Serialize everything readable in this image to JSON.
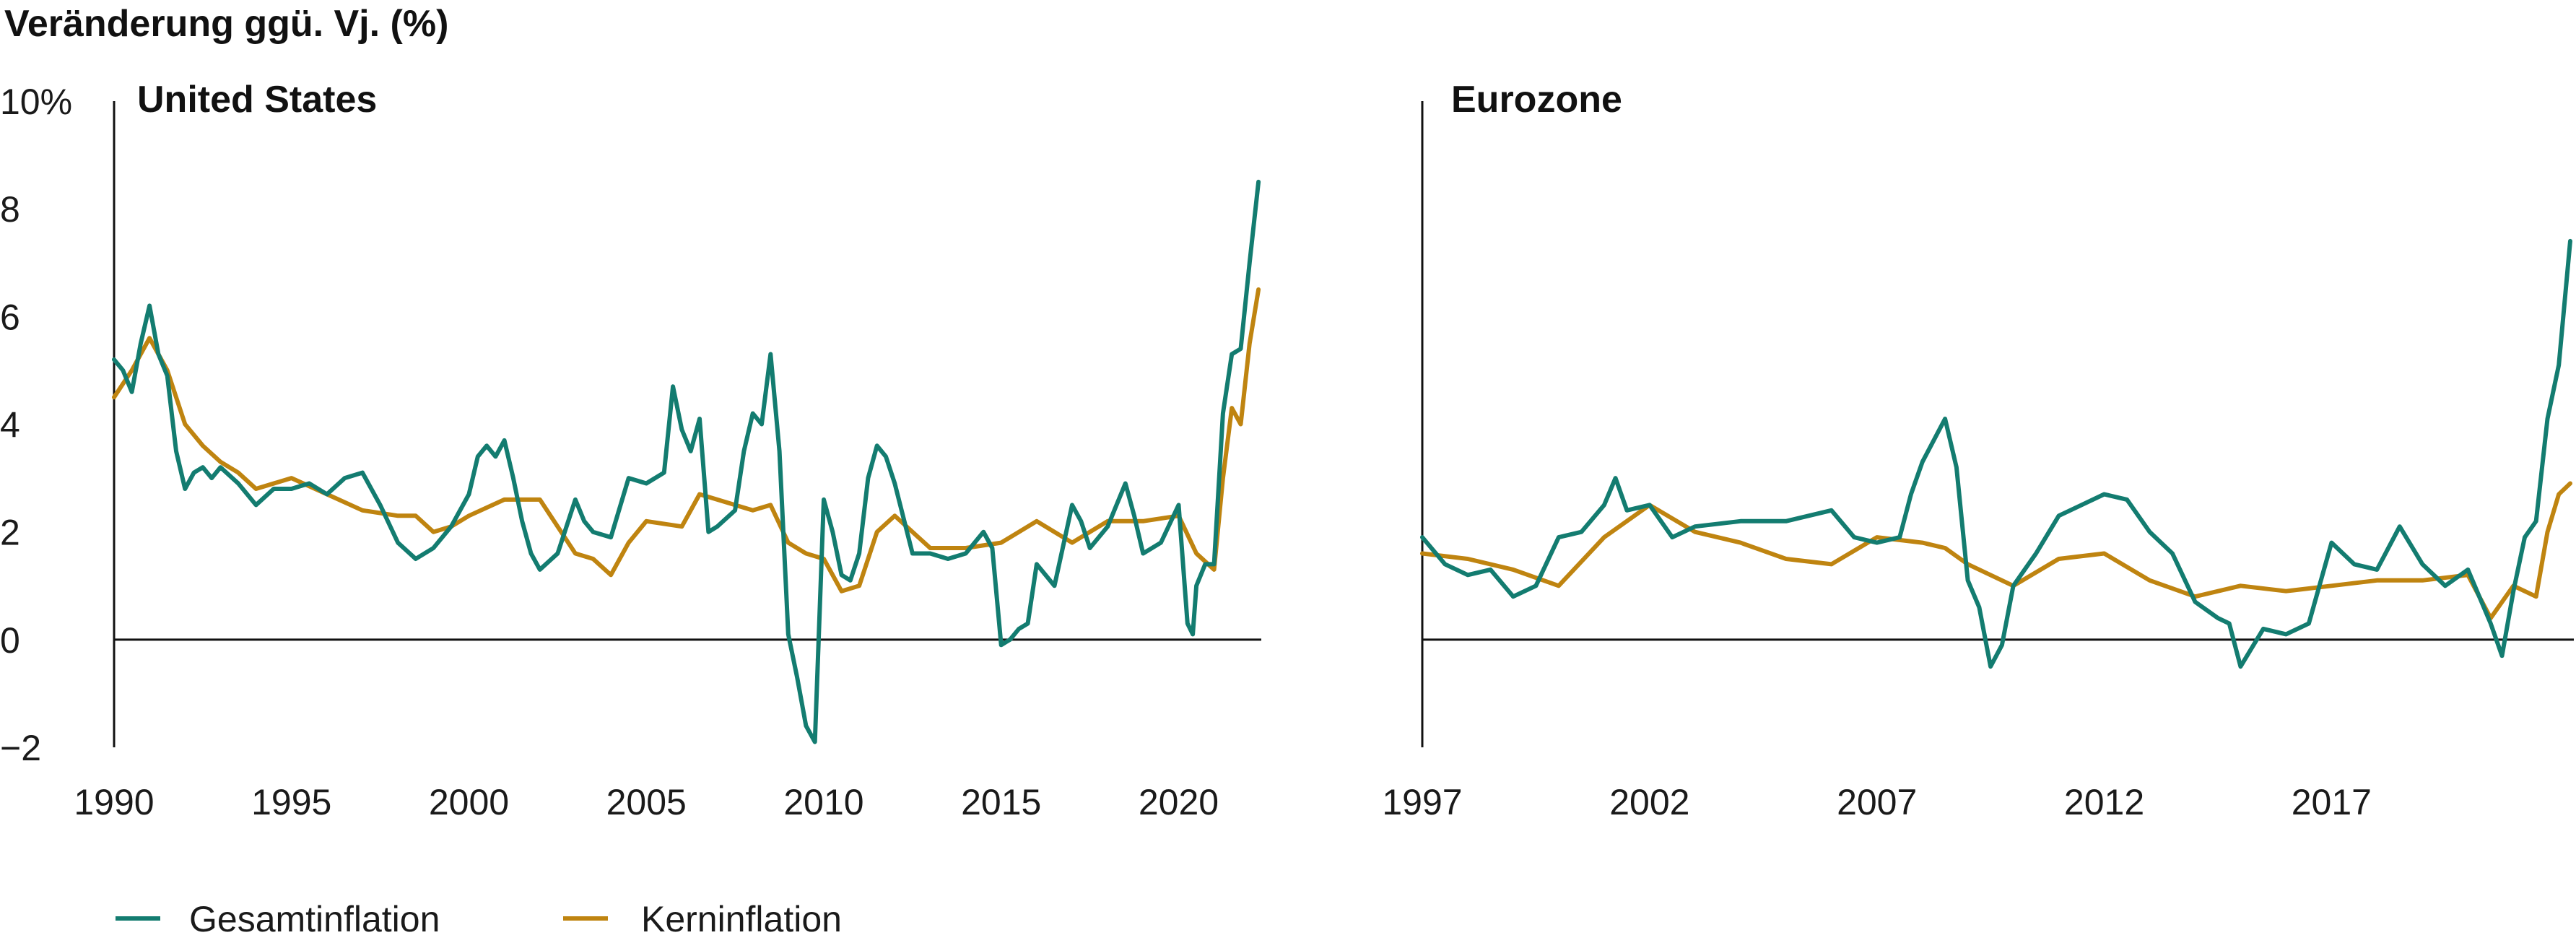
{
  "colors": {
    "headline": "#137c70",
    "core": "#bf8410",
    "axis": "#111111"
  },
  "ylabel": "Veränderung ggü. Vj. (%)",
  "legend": [
    {
      "label": "Gesamtinflation",
      "color": "#137c70"
    },
    {
      "label": "Kerninflation",
      "color": "#bf8410"
    }
  ],
  "chart_data": [
    {
      "type": "line",
      "title": "United States",
      "ylim": [
        -2,
        10
      ],
      "yticks": [
        -2,
        0,
        2,
        4,
        6,
        8,
        10
      ],
      "ytick_labels": [
        "−2",
        "0",
        "2",
        "4",
        "6",
        "8",
        "10%"
      ],
      "xlim": [
        1990,
        2022.33
      ],
      "xticks": [
        1990,
        1995,
        2000,
        2005,
        2010,
        2015,
        2020
      ],
      "xtick_labels": [
        "1990",
        "1995",
        "2000",
        "2005",
        "2010",
        "2015",
        "2020"
      ],
      "series": [
        {
          "name": "Gesamtinflation",
          "color": "#137c70",
          "x": [
            1990.0,
            1990.25,
            1990.5,
            1990.75,
            1991.0,
            1991.25,
            1991.5,
            1991.75,
            1992.0,
            1992.25,
            1992.5,
            1992.75,
            1993.0,
            1993.5,
            1994.0,
            1994.5,
            1995.0,
            1995.5,
            1996.0,
            1996.5,
            1997.0,
            1997.5,
            1998.0,
            1998.5,
            1999.0,
            1999.5,
            2000.0,
            2000.25,
            2000.5,
            2000.75,
            2001.0,
            2001.25,
            2001.5,
            2001.75,
            2002.0,
            2002.5,
            2003.0,
            2003.25,
            2003.5,
            2004.0,
            2004.5,
            2005.0,
            2005.5,
            2005.75,
            2006.0,
            2006.25,
            2006.5,
            2006.75,
            2007.0,
            2007.5,
            2007.75,
            2008.0,
            2008.25,
            2008.5,
            2008.75,
            2009.0,
            2009.25,
            2009.5,
            2009.75,
            2010.0,
            2010.25,
            2010.5,
            2010.75,
            2011.0,
            2011.25,
            2011.5,
            2011.75,
            2012.0,
            2012.5,
            2013.0,
            2013.5,
            2014.0,
            2014.5,
            2014.75,
            2015.0,
            2015.25,
            2015.5,
            2015.75,
            2016.0,
            2016.5,
            2017.0,
            2017.25,
            2017.5,
            2018.0,
            2018.5,
            2018.75,
            2019.0,
            2019.5,
            2020.0,
            2020.25,
            2020.4,
            2020.5,
            2020.75,
            2021.0,
            2021.25,
            2021.5,
            2021.75,
            2022.0,
            2022.25
          ],
          "values": [
            5.2,
            5.0,
            4.6,
            5.5,
            6.2,
            5.3,
            4.9,
            3.5,
            2.8,
            3.1,
            3.2,
            3.0,
            3.2,
            2.9,
            2.5,
            2.8,
            2.8,
            2.9,
            2.7,
            3.0,
            3.1,
            2.5,
            1.8,
            1.5,
            1.7,
            2.1,
            2.7,
            3.4,
            3.6,
            3.4,
            3.7,
            3.0,
            2.2,
            1.6,
            1.3,
            1.6,
            2.6,
            2.2,
            2.0,
            1.9,
            3.0,
            2.9,
            3.1,
            4.7,
            3.9,
            3.5,
            4.1,
            2.0,
            2.1,
            2.4,
            3.5,
            4.2,
            4.0,
            5.3,
            3.5,
            0.1,
            -0.7,
            -1.6,
            -1.9,
            2.6,
            2.0,
            1.2,
            1.1,
            1.6,
            3.0,
            3.6,
            3.4,
            2.9,
            1.6,
            1.6,
            1.5,
            1.6,
            2.0,
            1.7,
            -0.1,
            0.0,
            0.2,
            0.3,
            1.4,
            1.0,
            2.5,
            2.2,
            1.7,
            2.1,
            2.9,
            2.3,
            1.6,
            1.8,
            2.5,
            0.3,
            0.1,
            1.0,
            1.4,
            1.4,
            4.2,
            5.3,
            5.4,
            7.0,
            8.5
          ]
        },
        {
          "name": "Kerninflation",
          "color": "#bf8410",
          "x": [
            1990.0,
            1990.5,
            1991.0,
            1991.5,
            1992.0,
            1992.5,
            1993.0,
            1993.5,
            1994.0,
            1995.0,
            1996.0,
            1997.0,
            1998.0,
            1998.5,
            1999.0,
            1999.5,
            2000.0,
            2001.0,
            2002.0,
            2003.0,
            2003.5,
            2004.0,
            2004.5,
            2005.0,
            2006.0,
            2006.5,
            2007.0,
            2008.0,
            2008.5,
            2009.0,
            2009.5,
            2010.0,
            2010.5,
            2011.0,
            2011.5,
            2012.0,
            2013.0,
            2014.0,
            2015.0,
            2016.0,
            2017.0,
            2018.0,
            2019.0,
            2020.0,
            2020.5,
            2021.0,
            2021.25,
            2021.5,
            2021.75,
            2022.0,
            2022.25
          ],
          "values": [
            4.5,
            5.0,
            5.6,
            5.0,
            4.0,
            3.6,
            3.3,
            3.1,
            2.8,
            3.0,
            2.7,
            2.4,
            2.3,
            2.3,
            2.0,
            2.1,
            2.3,
            2.6,
            2.6,
            1.6,
            1.5,
            1.2,
            1.8,
            2.2,
            2.1,
            2.7,
            2.6,
            2.4,
            2.5,
            1.8,
            1.6,
            1.5,
            0.9,
            1.0,
            2.0,
            2.3,
            1.7,
            1.7,
            1.8,
            2.2,
            1.8,
            2.2,
            2.2,
            2.3,
            1.6,
            1.3,
            3.0,
            4.3,
            4.0,
            5.5,
            6.5
          ]
        }
      ]
    },
    {
      "type": "line",
      "title": "Eurozone",
      "ylim": [
        -2,
        10
      ],
      "yticks": [
        -2,
        0,
        2,
        4,
        6,
        8,
        10
      ],
      "xlim": [
        1997,
        2022.33
      ],
      "xticks": [
        1997,
        2002,
        2007,
        2012,
        2017
      ],
      "xtick_labels": [
        "1997",
        "2002",
        "2007",
        "2012",
        "2017"
      ],
      "series": [
        {
          "name": "Gesamtinflation",
          "color": "#137c70",
          "x": [
            1997.0,
            1997.5,
            1998.0,
            1998.5,
            1999.0,
            1999.5,
            2000.0,
            2000.5,
            2001.0,
            2001.25,
            2001.5,
            2002.0,
            2002.5,
            2003.0,
            2004.0,
            2005.0,
            2006.0,
            2006.5,
            2007.0,
            2007.5,
            2007.75,
            2008.0,
            2008.25,
            2008.5,
            2008.75,
            2009.0,
            2009.25,
            2009.5,
            2009.75,
            2010.0,
            2010.5,
            2011.0,
            2011.5,
            2012.0,
            2012.5,
            2013.0,
            2013.5,
            2014.0,
            2014.5,
            2014.75,
            2015.0,
            2015.5,
            2016.0,
            2016.5,
            2017.0,
            2017.5,
            2018.0,
            2018.5,
            2019.0,
            2019.5,
            2020.0,
            2020.5,
            2020.75,
            2021.0,
            2021.25,
            2021.5,
            2021.75,
            2022.0,
            2022.25
          ],
          "values": [
            1.9,
            1.4,
            1.2,
            1.3,
            0.8,
            1.0,
            1.9,
            2.0,
            2.5,
            3.0,
            2.4,
            2.5,
            1.9,
            2.1,
            2.2,
            2.2,
            2.4,
            1.9,
            1.8,
            1.9,
            2.7,
            3.3,
            3.7,
            4.1,
            3.2,
            1.1,
            0.6,
            -0.5,
            -0.1,
            1.0,
            1.6,
            2.3,
            2.5,
            2.7,
            2.6,
            2.0,
            1.6,
            0.7,
            0.4,
            0.3,
            -0.5,
            0.2,
            0.1,
            0.3,
            1.8,
            1.4,
            1.3,
            2.1,
            1.4,
            1.0,
            1.3,
            0.3,
            -0.3,
            0.9,
            1.9,
            2.2,
            4.1,
            5.1,
            7.4
          ]
        },
        {
          "name": "Kerninflation",
          "color": "#bf8410",
          "x": [
            1997.0,
            1998.0,
            1999.0,
            2000.0,
            2001.0,
            2002.0,
            2003.0,
            2004.0,
            2005.0,
            2006.0,
            2007.0,
            2008.0,
            2008.5,
            2009.0,
            2010.0,
            2011.0,
            2012.0,
            2013.0,
            2014.0,
            2015.0,
            2016.0,
            2017.0,
            2018.0,
            2019.0,
            2020.0,
            2020.5,
            2021.0,
            2021.5,
            2021.75,
            2022.0,
            2022.25
          ],
          "values": [
            1.6,
            1.5,
            1.3,
            1.0,
            1.9,
            2.5,
            2.0,
            1.8,
            1.5,
            1.4,
            1.9,
            1.8,
            1.7,
            1.4,
            1.0,
            1.5,
            1.6,
            1.1,
            0.8,
            1.0,
            0.9,
            1.0,
            1.1,
            1.1,
            1.2,
            0.4,
            1.0,
            0.8,
            2.0,
            2.7,
            2.9
          ]
        }
      ]
    }
  ]
}
